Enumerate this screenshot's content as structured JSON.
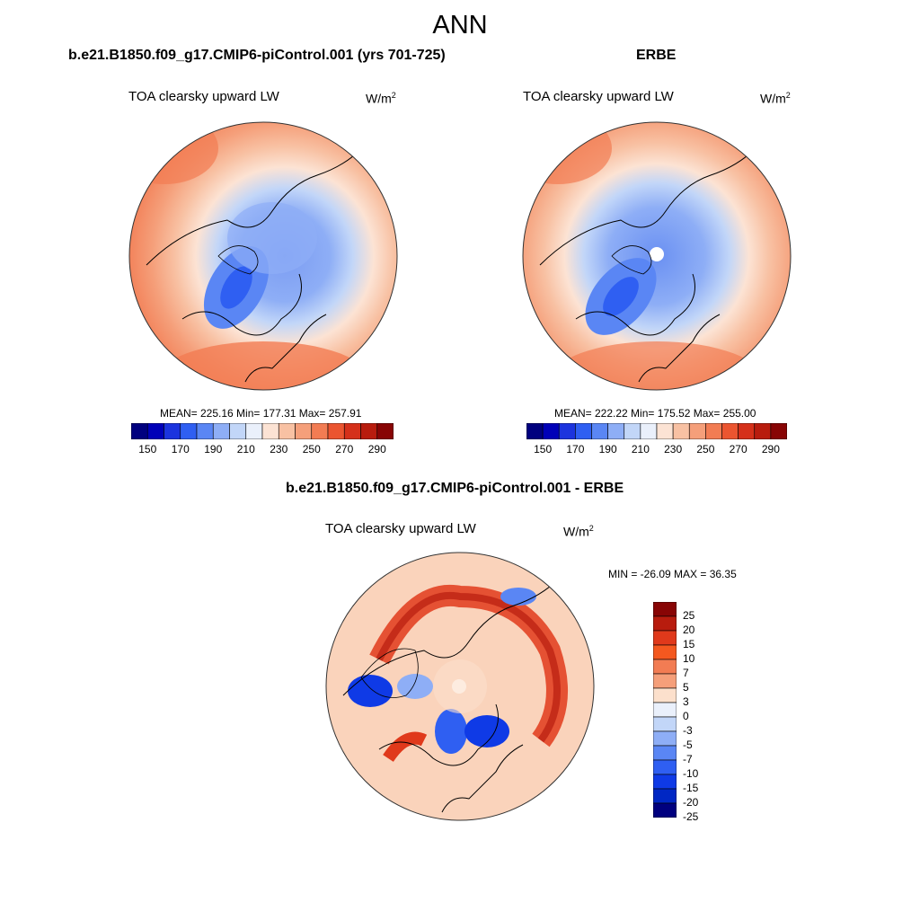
{
  "header": {
    "title": "ANN"
  },
  "panels": [
    {
      "title": "b.e21.B1850.f09_g17.CMIP6-piControl.001 (yrs 701-725)",
      "variable": "TOA clearsky upward LW",
      "units_base": "W/m",
      "units_exp": "2",
      "stats": "MEAN= 225.16  Min= 177.31  Max= 257.91"
    },
    {
      "title": "ERBE",
      "variable": "TOA clearsky upward LW",
      "units_base": "W/m",
      "units_exp": "2",
      "stats": "MEAN= 222.22  Min= 175.52  Max= 255.00"
    },
    {
      "title": "b.e21.B1850.f09_g17.CMIP6-piControl.001 - ERBE",
      "variable": "TOA clearsky upward LW",
      "units_base": "W/m",
      "units_exp": "2",
      "stats": "MIN = -26.09 MAX =  36.35"
    }
  ],
  "colorbar_abs": {
    "colors": [
      "#00007f",
      "#0000b8",
      "#1c34de",
      "#2f5ff2",
      "#5a86f4",
      "#8eaef6",
      "#c2d6f8",
      "#eaf0fb",
      "#fce3d4",
      "#f8c1a3",
      "#f59f7a",
      "#f27c53",
      "#eb5530",
      "#d5301a",
      "#b81c0e",
      "#880505"
    ],
    "labels": [
      "150",
      "170",
      "190",
      "210",
      "230",
      "250",
      "270",
      "290"
    ]
  },
  "colorbar_diff": {
    "colors": [
      "#880505",
      "#b81c0e",
      "#e0391b",
      "#f4581f",
      "#f27c53",
      "#f59f7a",
      "#fce0cc",
      "#eaf0fb",
      "#c2d6f8",
      "#8eaef6",
      "#5a86f4",
      "#2f5ff2",
      "#0f3ae6",
      "#0027c4",
      "#00007f"
    ],
    "labels": [
      "25",
      "20",
      "15",
      "10",
      "7",
      "5",
      "3",
      "0",
      "-3",
      "-5",
      "-7",
      "-10",
      "-15",
      "-20",
      "-25"
    ]
  }
}
